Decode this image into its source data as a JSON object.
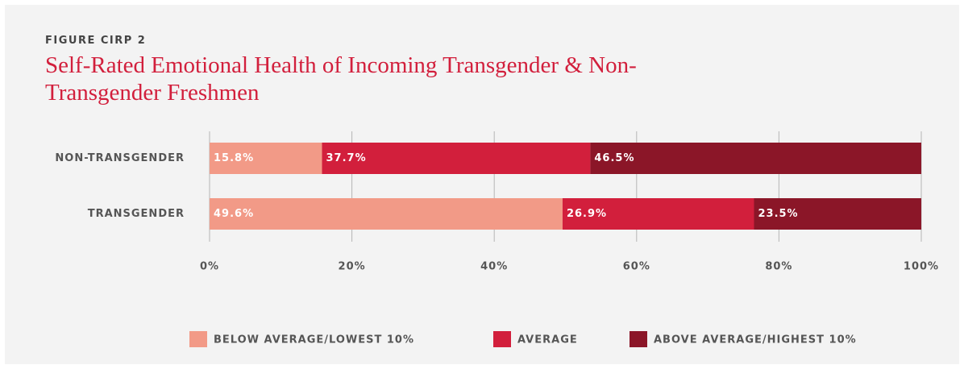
{
  "chart_data": {
    "type": "stacked_barh",
    "label": "FIGURE CIRP 2",
    "title": "Self-Rated Emotional Health of Incoming Transgender & Non-Transgender Freshmen",
    "categories": [
      "NON-TRANSGENDER",
      "TRANSGENDER"
    ],
    "series": [
      {
        "name": "BELOW AVERAGE/LOWEST 10%",
        "color": "#f29a87",
        "values": [
          15.8,
          49.6
        ],
        "value_labels": [
          "15.8%",
          "49.6%"
        ]
      },
      {
        "name": "AVERAGE",
        "color": "#d21f3c",
        "values": [
          37.7,
          26.9
        ],
        "value_labels": [
          "37.7%",
          "26.9%"
        ]
      },
      {
        "name": "ABOVE AVERAGE/HIGHEST 10%",
        "color": "#8b1628",
        "values": [
          46.5,
          23.5
        ],
        "value_labels": [
          "46.5%",
          "23.5%"
        ]
      }
    ],
    "xlim": [
      0,
      100
    ],
    "xticks": [
      {
        "value": 0,
        "label": "0%"
      },
      {
        "value": 20,
        "label": "20%"
      },
      {
        "value": 40,
        "label": "40%"
      },
      {
        "value": 60,
        "label": "60%"
      },
      {
        "value": 80,
        "label": "80%"
      },
      {
        "value": 100,
        "label": "100%"
      }
    ],
    "grid": true,
    "legend": "bottom"
  }
}
